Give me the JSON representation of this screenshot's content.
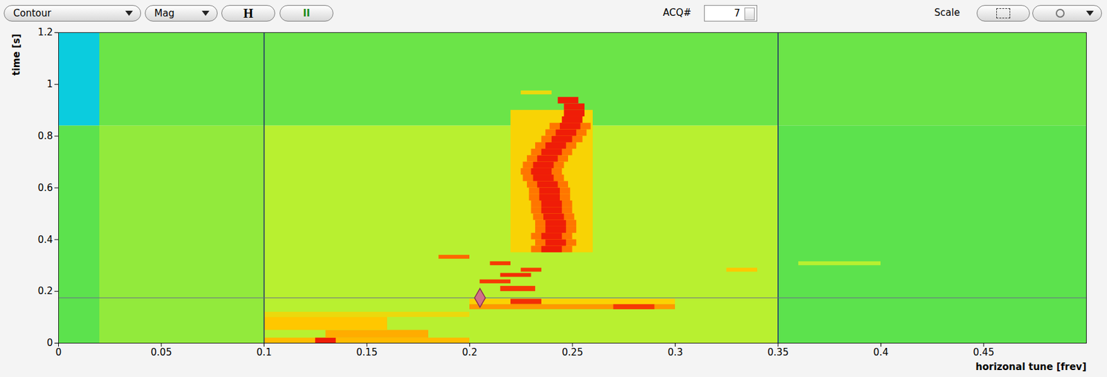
{
  "toolbar": {
    "dropdowns": [
      "Contour",
      "Mag"
    ],
    "buttons": [
      "H",
      "II"
    ],
    "acq_label": "ACQ#",
    "acq_value": 7,
    "scale_label": "Scale"
  },
  "chart_data": {
    "type": "heatmap",
    "xlabel": "horizonal tune [frev]",
    "ylabel": "time [s]",
    "xlim": [
      0,
      0.5
    ],
    "ylim": [
      0,
      1.2
    ],
    "xticks": [
      0,
      0.05,
      0.1,
      0.15,
      0.2,
      0.25,
      0.3,
      0.35,
      0.4,
      0.45
    ],
    "yticks": [
      0,
      0.2,
      0.4,
      0.6,
      0.8,
      1,
      1.2
    ],
    "grid": false,
    "zlim": [
      0,
      1
    ],
    "markers": {
      "vlines": [
        0.1,
        0.35
      ],
      "hline": 0.175,
      "point": [
        0.205,
        0.175
      ]
    },
    "cells": [
      {
        "x0": 0,
        "x1": 0.02,
        "y0": 0,
        "y1": 0.84,
        "z": 0.38
      },
      {
        "x0": 0.02,
        "x1": 0.1,
        "y0": 0,
        "y1": 0.84,
        "z": 0.45
      },
      {
        "x0": 0.1,
        "x1": 0.35,
        "y0": 0,
        "y1": 0.84,
        "z": 0.5
      },
      {
        "x0": 0.35,
        "x1": 0.5,
        "y0": 0,
        "y1": 0.84,
        "z": 0.38
      },
      {
        "x0": 0.02,
        "x1": 0.5,
        "y0": 0.84,
        "y1": 1.2,
        "z": 0.4
      },
      {
        "x0": 0,
        "x1": 0.02,
        "y0": 0.84,
        "y1": 1.2,
        "z": 0.2
      },
      {
        "x0": 0.22,
        "x1": 0.26,
        "y0": 0.35,
        "y1": 0.9,
        "z": 0.65
      },
      {
        "x0": 0.1,
        "x1": 0.2,
        "y0": 0,
        "y1": 0.02,
        "z": 0.7
      },
      {
        "x0": 0.125,
        "x1": 0.135,
        "y0": 0,
        "y1": 0.02,
        "z": 0.95
      },
      {
        "x0": 0.13,
        "x1": 0.18,
        "y0": 0.02,
        "y1": 0.05,
        "z": 0.72
      },
      {
        "x0": 0.1,
        "x1": 0.16,
        "y0": 0.05,
        "y1": 0.1,
        "z": 0.68
      },
      {
        "x0": 0.1,
        "x1": 0.2,
        "y0": 0.1,
        "y1": 0.12,
        "z": 0.62
      },
      {
        "x0": 0.2,
        "x1": 0.3,
        "y0": 0.13,
        "y1": 0.15,
        "z": 0.75
      },
      {
        "x0": 0.27,
        "x1": 0.29,
        "y0": 0.13,
        "y1": 0.15,
        "z": 0.9
      },
      {
        "x0": 0.2,
        "x1": 0.3,
        "y0": 0.15,
        "y1": 0.17,
        "z": 0.66
      },
      {
        "x0": 0.22,
        "x1": 0.235,
        "y0": 0.15,
        "y1": 0.17,
        "z": 0.92
      },
      {
        "x0": 0.215,
        "x1": 0.232,
        "y0": 0.2,
        "y1": 0.22,
        "z": 0.9
      },
      {
        "x0": 0.205,
        "x1": 0.22,
        "y0": 0.23,
        "y1": 0.245,
        "z": 0.9
      },
      {
        "x0": 0.215,
        "x1": 0.23,
        "y0": 0.255,
        "y1": 0.27,
        "z": 0.92
      },
      {
        "x0": 0.225,
        "x1": 0.235,
        "y0": 0.275,
        "y1": 0.29,
        "z": 0.9
      },
      {
        "x0": 0.325,
        "x1": 0.34,
        "y0": 0.275,
        "y1": 0.29,
        "z": 0.68
      },
      {
        "x0": 0.21,
        "x1": 0.22,
        "y0": 0.3,
        "y1": 0.315,
        "z": 0.9
      },
      {
        "x0": 0.36,
        "x1": 0.4,
        "y0": 0.3,
        "y1": 0.315,
        "z": 0.5
      },
      {
        "x0": 0.185,
        "x1": 0.2,
        "y0": 0.325,
        "y1": 0.34,
        "z": 0.82
      },
      {
        "x0": 0.23,
        "x1": 0.25,
        "y0": 0.35,
        "y1": 0.375,
        "z": 0.8
      },
      {
        "x0": 0.235,
        "x1": 0.245,
        "y0": 0.35,
        "y1": 0.375,
        "z": 0.95
      },
      {
        "x0": 0.232,
        "x1": 0.252,
        "y0": 0.375,
        "y1": 0.4,
        "z": 0.8
      },
      {
        "x0": 0.237,
        "x1": 0.247,
        "y0": 0.375,
        "y1": 0.4,
        "z": 0.95
      },
      {
        "x0": 0.23,
        "x1": 0.25,
        "y0": 0.4,
        "y1": 0.425,
        "z": 0.8
      },
      {
        "x0": 0.235,
        "x1": 0.245,
        "y0": 0.4,
        "y1": 0.425,
        "z": 0.95
      },
      {
        "x0": 0.232,
        "x1": 0.252,
        "y0": 0.425,
        "y1": 0.45,
        "z": 0.8
      },
      {
        "x0": 0.237,
        "x1": 0.247,
        "y0": 0.425,
        "y1": 0.45,
        "z": 0.95
      },
      {
        "x0": 0.232,
        "x1": 0.252,
        "y0": 0.45,
        "y1": 0.475,
        "z": 0.8
      },
      {
        "x0": 0.237,
        "x1": 0.247,
        "y0": 0.45,
        "y1": 0.475,
        "z": 0.95
      },
      {
        "x0": 0.231,
        "x1": 0.251,
        "y0": 0.475,
        "y1": 0.5,
        "z": 0.8
      },
      {
        "x0": 0.236,
        "x1": 0.246,
        "y0": 0.475,
        "y1": 0.5,
        "z": 0.95
      },
      {
        "x0": 0.23,
        "x1": 0.25,
        "y0": 0.5,
        "y1": 0.525,
        "z": 0.8
      },
      {
        "x0": 0.235,
        "x1": 0.245,
        "y0": 0.5,
        "y1": 0.525,
        "z": 0.95
      },
      {
        "x0": 0.23,
        "x1": 0.25,
        "y0": 0.525,
        "y1": 0.55,
        "z": 0.8
      },
      {
        "x0": 0.235,
        "x1": 0.245,
        "y0": 0.525,
        "y1": 0.55,
        "z": 0.95
      },
      {
        "x0": 0.229,
        "x1": 0.249,
        "y0": 0.55,
        "y1": 0.575,
        "z": 0.8
      },
      {
        "x0": 0.234,
        "x1": 0.244,
        "y0": 0.55,
        "y1": 0.575,
        "z": 0.95
      },
      {
        "x0": 0.229,
        "x1": 0.249,
        "y0": 0.575,
        "y1": 0.6,
        "z": 0.8
      },
      {
        "x0": 0.234,
        "x1": 0.244,
        "y0": 0.575,
        "y1": 0.6,
        "z": 0.95
      },
      {
        "x0": 0.228,
        "x1": 0.248,
        "y0": 0.6,
        "y1": 0.625,
        "z": 0.8
      },
      {
        "x0": 0.233,
        "x1": 0.243,
        "y0": 0.6,
        "y1": 0.625,
        "z": 0.95
      },
      {
        "x0": 0.226,
        "x1": 0.246,
        "y0": 0.625,
        "y1": 0.65,
        "z": 0.8
      },
      {
        "x0": 0.231,
        "x1": 0.241,
        "y0": 0.625,
        "y1": 0.65,
        "z": 0.95
      },
      {
        "x0": 0.225,
        "x1": 0.245,
        "y0": 0.65,
        "y1": 0.675,
        "z": 0.8
      },
      {
        "x0": 0.23,
        "x1": 0.24,
        "y0": 0.65,
        "y1": 0.675,
        "z": 0.95
      },
      {
        "x0": 0.226,
        "x1": 0.246,
        "y0": 0.675,
        "y1": 0.7,
        "z": 0.8
      },
      {
        "x0": 0.231,
        "x1": 0.241,
        "y0": 0.675,
        "y1": 0.7,
        "z": 0.95
      },
      {
        "x0": 0.228,
        "x1": 0.248,
        "y0": 0.7,
        "y1": 0.725,
        "z": 0.8
      },
      {
        "x0": 0.233,
        "x1": 0.243,
        "y0": 0.7,
        "y1": 0.725,
        "z": 0.95
      },
      {
        "x0": 0.23,
        "x1": 0.25,
        "y0": 0.725,
        "y1": 0.75,
        "z": 0.8
      },
      {
        "x0": 0.235,
        "x1": 0.245,
        "y0": 0.725,
        "y1": 0.75,
        "z": 0.95
      },
      {
        "x0": 0.232,
        "x1": 0.252,
        "y0": 0.75,
        "y1": 0.775,
        "z": 0.8
      },
      {
        "x0": 0.237,
        "x1": 0.247,
        "y0": 0.75,
        "y1": 0.775,
        "z": 0.95
      },
      {
        "x0": 0.235,
        "x1": 0.255,
        "y0": 0.775,
        "y1": 0.8,
        "z": 0.8
      },
      {
        "x0": 0.24,
        "x1": 0.25,
        "y0": 0.775,
        "y1": 0.8,
        "z": 0.95
      },
      {
        "x0": 0.237,
        "x1": 0.257,
        "y0": 0.8,
        "y1": 0.825,
        "z": 0.8
      },
      {
        "x0": 0.242,
        "x1": 0.252,
        "y0": 0.8,
        "y1": 0.825,
        "z": 0.95
      },
      {
        "x0": 0.239,
        "x1": 0.259,
        "y0": 0.825,
        "y1": 0.85,
        "z": 0.8
      },
      {
        "x0": 0.244,
        "x1": 0.254,
        "y0": 0.825,
        "y1": 0.85,
        "z": 0.95
      },
      {
        "x0": 0.245,
        "x1": 0.255,
        "y0": 0.85,
        "y1": 0.875,
        "z": 0.95
      },
      {
        "x0": 0.246,
        "x1": 0.256,
        "y0": 0.875,
        "y1": 0.9,
        "z": 0.95
      },
      {
        "x0": 0.246,
        "x1": 0.256,
        "y0": 0.9,
        "y1": 0.925,
        "z": 0.95
      },
      {
        "x0": 0.243,
        "x1": 0.253,
        "y0": 0.925,
        "y1": 0.95,
        "z": 0.95
      },
      {
        "x0": 0.225,
        "x1": 0.24,
        "y0": 0.96,
        "y1": 0.975,
        "z": 0.62
      }
    ]
  }
}
